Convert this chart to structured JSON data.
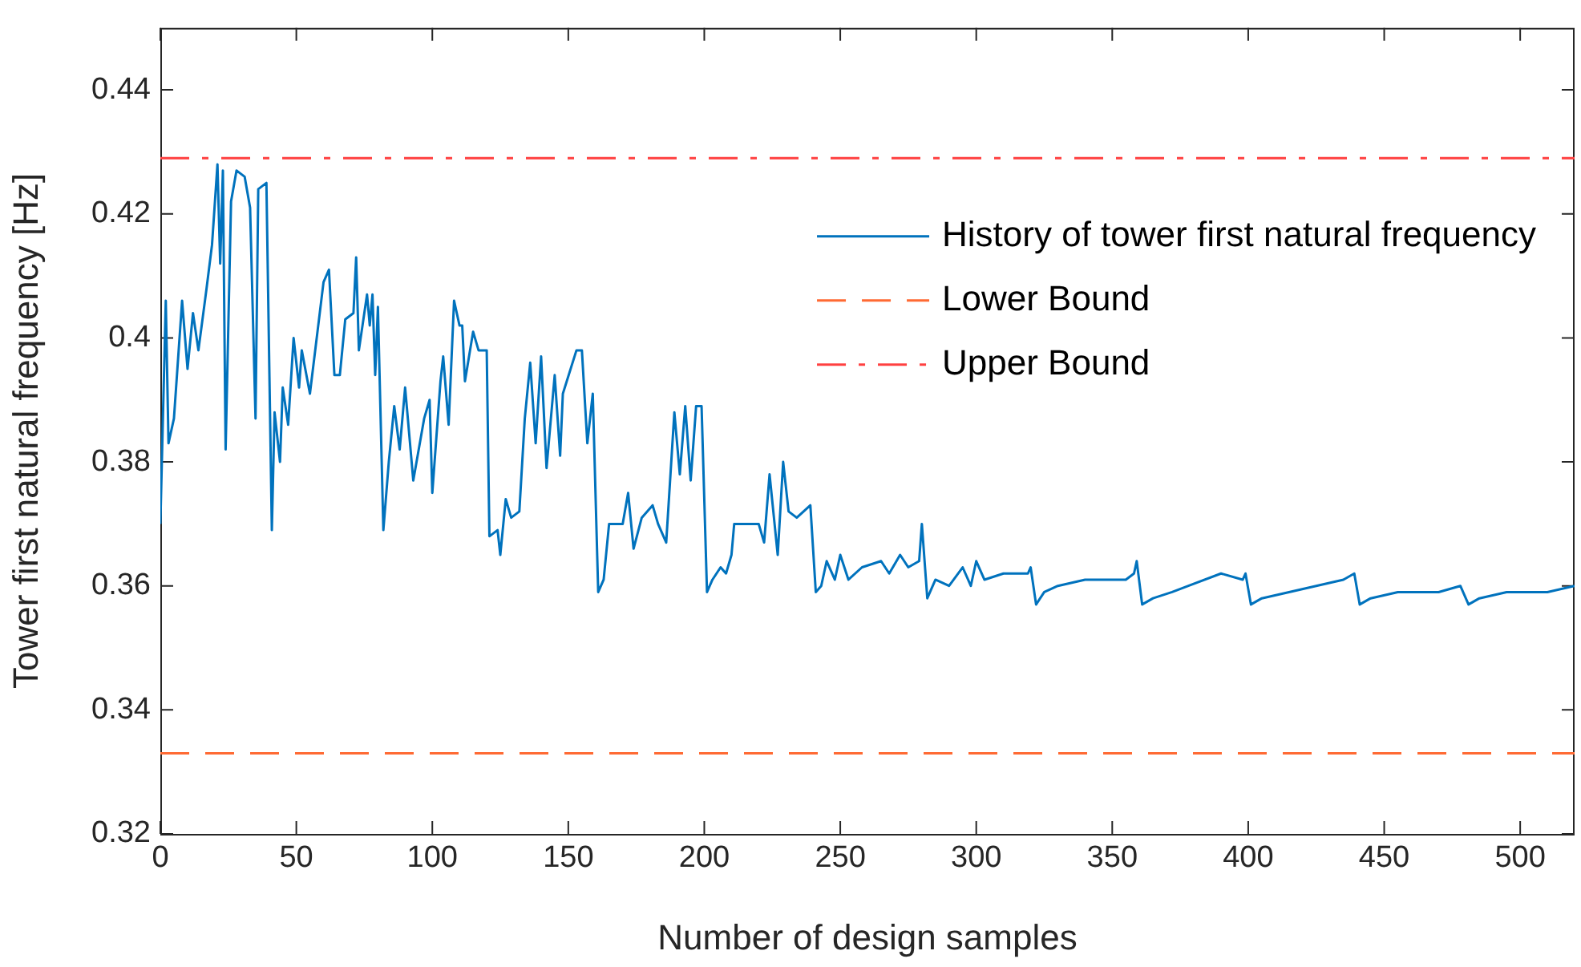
{
  "chart_data": {
    "type": "line",
    "xlabel": "Number of design samples",
    "ylabel": "Tower first natural frequency [Hz]",
    "xlim": [
      0,
      520
    ],
    "xticks": [
      0,
      50,
      100,
      150,
      200,
      250,
      300,
      350,
      400,
      450,
      500
    ],
    "ylim": [
      0.32,
      0.45
    ],
    "yticks": [
      0.32,
      0.34,
      0.36,
      0.38,
      0.4,
      0.42,
      0.44
    ],
    "grid": false,
    "legend": "top right",
    "marker": "none",
    "series": [
      {
        "name": "History of tower first natural frequency",
        "color": "#0072bd",
        "line_style": "solid",
        "x": [
          0,
          2,
          3,
          5,
          8,
          10,
          12,
          14,
          17,
          19,
          21,
          22,
          23,
          24,
          26,
          28,
          31,
          33,
          35,
          36,
          39,
          41,
          42,
          44,
          45,
          47,
          49,
          51,
          52,
          55,
          60,
          62,
          64,
          66,
          68,
          71,
          72,
          73,
          76,
          77,
          78,
          79,
          80,
          82,
          84,
          86,
          88,
          90,
          93,
          97,
          99,
          100,
          103,
          104,
          106,
          108,
          110,
          111,
          112,
          115,
          117,
          120,
          121,
          124,
          125,
          127,
          129,
          132,
          134,
          136,
          138,
          140,
          142,
          145,
          147,
          148,
          153,
          155,
          157,
          159,
          161,
          163,
          165,
          170,
          172,
          174,
          177,
          181,
          183,
          186,
          188,
          189,
          191,
          193,
          195,
          197,
          199,
          201,
          203,
          206,
          208,
          210,
          211,
          220,
          222,
          224,
          227,
          229,
          231,
          234,
          239,
          241,
          243,
          245,
          248,
          250,
          253,
          258,
          265,
          268,
          272,
          275,
          279,
          280,
          282,
          285,
          290,
          295,
          298,
          300,
          303,
          310,
          319,
          320,
          322,
          325,
          330,
          340,
          355,
          358,
          359,
          361,
          365,
          372,
          378,
          390,
          398,
          399,
          401,
          405,
          415,
          425,
          435,
          439,
          441,
          445,
          455,
          470,
          478,
          481,
          485,
          495,
          510,
          520
        ],
        "values": [
          0.37,
          0.406,
          0.383,
          0.387,
          0.406,
          0.395,
          0.404,
          0.398,
          0.408,
          0.415,
          0.428,
          0.412,
          0.427,
          0.382,
          0.422,
          0.427,
          0.426,
          0.421,
          0.387,
          0.424,
          0.425,
          0.369,
          0.388,
          0.38,
          0.392,
          0.386,
          0.4,
          0.392,
          0.398,
          0.391,
          0.409,
          0.411,
          0.394,
          0.394,
          0.403,
          0.404,
          0.413,
          0.398,
          0.407,
          0.402,
          0.407,
          0.394,
          0.405,
          0.369,
          0.38,
          0.389,
          0.382,
          0.392,
          0.377,
          0.387,
          0.39,
          0.375,
          0.393,
          0.397,
          0.386,
          0.406,
          0.402,
          0.402,
          0.393,
          0.401,
          0.398,
          0.398,
          0.368,
          0.369,
          0.365,
          0.374,
          0.371,
          0.372,
          0.387,
          0.396,
          0.383,
          0.397,
          0.379,
          0.394,
          0.381,
          0.391,
          0.398,
          0.398,
          0.383,
          0.391,
          0.359,
          0.361,
          0.37,
          0.37,
          0.375,
          0.366,
          0.371,
          0.373,
          0.37,
          0.367,
          0.381,
          0.388,
          0.378,
          0.389,
          0.377,
          0.389,
          0.389,
          0.359,
          0.361,
          0.363,
          0.362,
          0.365,
          0.37,
          0.37,
          0.367,
          0.378,
          0.365,
          0.38,
          0.372,
          0.371,
          0.373,
          0.359,
          0.36,
          0.364,
          0.361,
          0.365,
          0.361,
          0.363,
          0.364,
          0.362,
          0.365,
          0.363,
          0.364,
          0.37,
          0.358,
          0.361,
          0.36,
          0.363,
          0.36,
          0.364,
          0.361,
          0.362,
          0.362,
          0.363,
          0.357,
          0.359,
          0.36,
          0.361,
          0.361,
          0.362,
          0.364,
          0.357,
          0.358,
          0.359,
          0.36,
          0.362,
          0.361,
          0.362,
          0.357,
          0.358,
          0.359,
          0.36,
          0.361,
          0.362,
          0.357,
          0.358,
          0.359,
          0.359,
          0.36,
          0.357,
          0.358,
          0.359,
          0.359,
          0.36
        ]
      },
      {
        "name": "Lower Bound",
        "color": "#ff6a33",
        "line_style": "dashed",
        "x": [
          0,
          520
        ],
        "values": [
          0.333,
          0.333
        ]
      },
      {
        "name": "Upper Bound",
        "color": "#ff4040",
        "line_style": "dashdot",
        "x": [
          0,
          520
        ],
        "values": [
          0.429,
          0.429
        ]
      }
    ]
  }
}
